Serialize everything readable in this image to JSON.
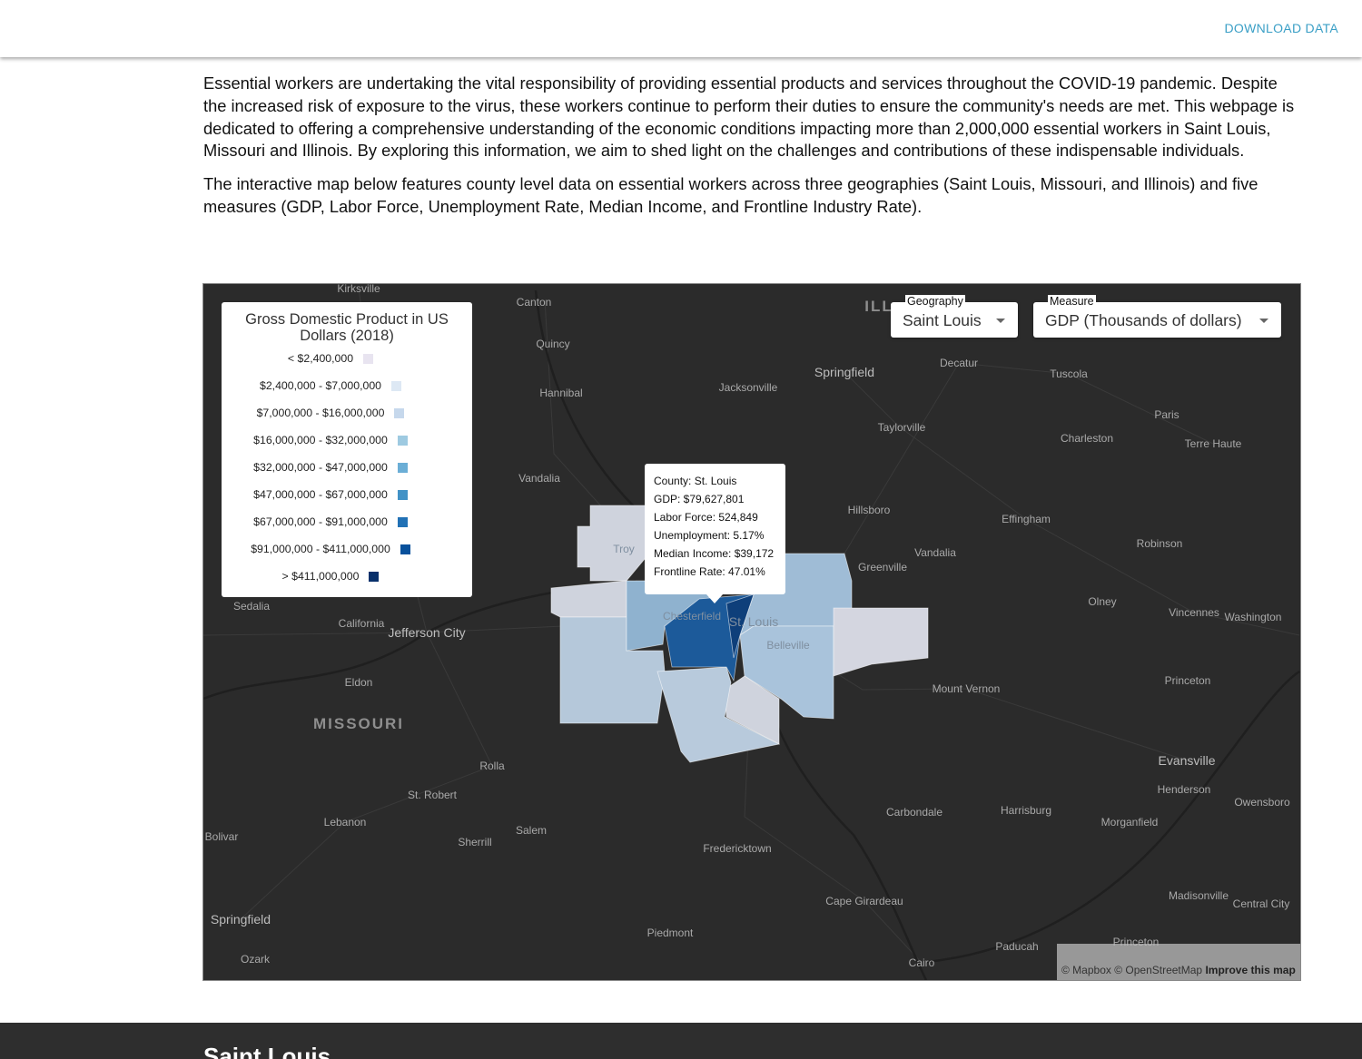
{
  "header": {
    "download": "DOWNLOAD DATA"
  },
  "intro": {
    "paragraphs": [
      "Essential workers are undertaking the vital responsibility of providing essential products and services throughout the COVID-19 pandemic. Despite the increased risk of exposure to the virus, these workers continue to perform their duties to ensure the community's needs are met. This webpage is dedicated to offering a comprehensive understanding of the economic conditions impacting more than 2,000,000 essential workers in Saint Louis, Missouri and Illinois. By exploring this information, we aim to shed light on the challenges and contributions of these indispensable individuals.",
      "The interactive map below features county level data on essential workers across three geographies (Saint Louis, Missouri, and Illinois) and five measures (GDP, Labor Force, Unemployment Rate, Median Income, and Frontline Industry Rate)."
    ]
  },
  "map": {
    "legend": {
      "title": "Gross Domestic Product in US Dollars (2018)",
      "items": [
        {
          "label": "< $2,400,000",
          "color": "#e8e4f0"
        },
        {
          "label": "$2,400,000 - $7,000,000",
          "color": "#dde8f4"
        },
        {
          "label": "$7,000,000 - $16,000,000",
          "color": "#c6d8ec"
        },
        {
          "label": "$16,000,000 - $32,000,000",
          "color": "#9ecae1"
        },
        {
          "label": "$32,000,000 - $47,000,000",
          "color": "#6baed6"
        },
        {
          "label": "$47,000,000 - $67,000,000",
          "color": "#4292c6"
        },
        {
          "label": "$67,000,000 - $91,000,000",
          "color": "#2171b5"
        },
        {
          "label": "$91,000,000 - $411,000,000",
          "color": "#08519c"
        },
        {
          "label": "> $411,000,000",
          "color": "#08306b"
        }
      ]
    },
    "controls": {
      "geography": {
        "label": "Geography",
        "value": "Saint Louis"
      },
      "measure": {
        "label": "Measure",
        "value": "GDP (Thousands of dollars)"
      }
    },
    "tooltip": {
      "lines": [
        "County: St. Louis",
        "GDP: $79,627,801",
        "Labor Force: 524,849",
        "Unemployment: 5.17%",
        "Median Income: $39,172",
        "Frontline Rate: 47.01%"
      ]
    },
    "places": [
      "Kirksville",
      "Canton",
      "Quincy",
      "Hannibal",
      "Jacksonville",
      "Springfield",
      "Decatur",
      "Tuscola",
      "Paris",
      "Taylorville",
      "Charleston",
      "Terre Haute",
      "Vandalia",
      "Vandalia",
      "Hillsboro",
      "Effingham",
      "Robinson",
      "Greenville",
      "Troy",
      "Olney",
      "Sedalia",
      "California",
      "Jefferson City",
      "Vincennes",
      "Washington",
      "Belleville",
      "Chesterfield",
      "St. Louis",
      "Eldon",
      "Mount Vernon",
      "Princeton",
      "MISSOURI",
      "Evansville",
      "Rolla",
      "Henderson",
      "Owensboro",
      "St. Robert",
      "Carbondale",
      "Harrisburg",
      "Lebanon",
      "Salem",
      "Morganfield",
      "Bolivar",
      "Sherrill",
      "Fredericktown",
      "Cape Girardeau",
      "Madisonville",
      "Central City",
      "Springfield",
      "Piedmont",
      "Princeton",
      "Paducah",
      "Ozark",
      "Cairo",
      "ILL"
    ],
    "attribution": {
      "mapbox": "© Mapbox",
      "osm": "© OpenStreetMap",
      "improve": "Improve this map"
    }
  },
  "footer": {
    "heading": "Saint Louis"
  }
}
